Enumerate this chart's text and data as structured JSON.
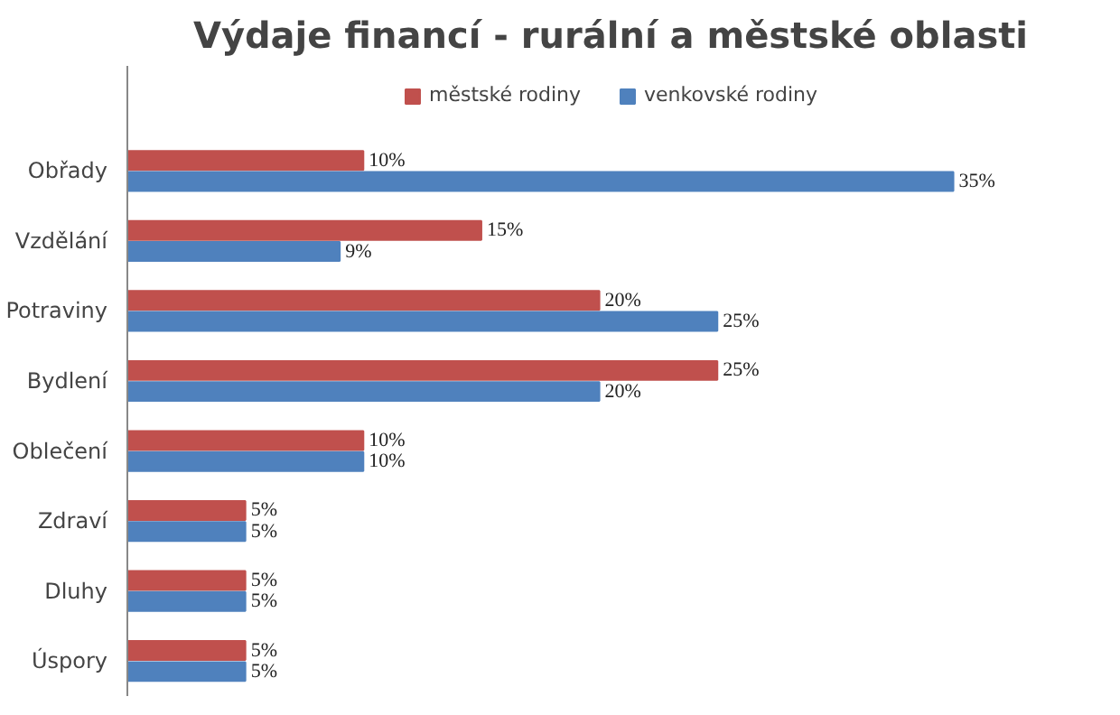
{
  "chart_data": {
    "type": "bar",
    "orientation": "horizontal",
    "title": "Výdaje financí - rurální a městské oblasti",
    "categories": [
      "Obřady",
      "Vzdělání",
      "Potraviny",
      "Bydlení",
      "Oblečení",
      "Zdraví",
      "Dluhy",
      "Úspory"
    ],
    "series": [
      {
        "name": "městské rodiny",
        "color": "#c0504d",
        "values": [
          10,
          15,
          20,
          25,
          10,
          5,
          5,
          5
        ],
        "value_labels": [
          "10%",
          "15%",
          "20%",
          "25%",
          "10%",
          "5%",
          "5%",
          "5%"
        ]
      },
      {
        "name": "venkovské rodiny",
        "color": "#4f81bd",
        "values": [
          35,
          9,
          25,
          20,
          10,
          5,
          5,
          5
        ],
        "value_labels": [
          "35%",
          "9%",
          "25%",
          "20%",
          "10%",
          "5%",
          "5%",
          "5%"
        ]
      }
    ],
    "legend": "top",
    "grid": false
  }
}
